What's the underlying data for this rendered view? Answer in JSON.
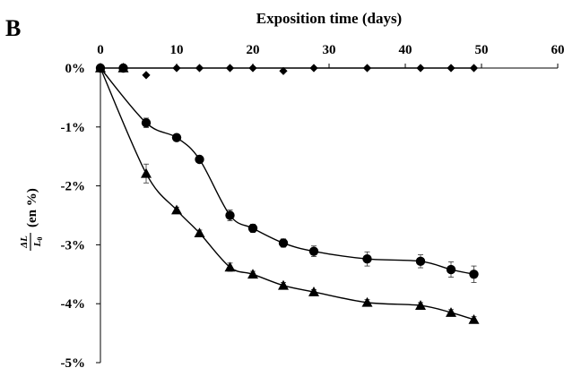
{
  "chart_data": {
    "type": "scatter",
    "panel_label": "B",
    "xlabel": "Exposition time (days)",
    "ylabel": {
      "numerator": "ΔL",
      "denominator_main": "L",
      "denominator_sub": "0",
      "suffix": "(en %)"
    },
    "xlim": [
      0,
      60
    ],
    "ylim": [
      -5,
      0
    ],
    "x_axis_position": "top",
    "x_ticks": [
      0,
      10,
      20,
      30,
      40,
      50,
      60
    ],
    "x_tick_labels": [
      "0",
      "10",
      "20",
      "30",
      "40",
      "50",
      "60"
    ],
    "y_ticks": [
      0,
      -1,
      -2,
      -3,
      -4,
      -5
    ],
    "y_tick_labels": [
      "0%",
      "-1%",
      "-2%",
      "-3%",
      "-4%",
      "-5%"
    ],
    "grid": false,
    "legend": "none",
    "series": [
      {
        "marker": "diamond",
        "color": "#000000",
        "trend_line": true,
        "x": [
          0,
          3,
          6,
          10,
          13,
          17,
          20,
          24,
          28,
          35,
          42,
          46,
          49
        ],
        "y": [
          0,
          0,
          -0.12,
          0,
          0,
          0,
          0,
          -0.05,
          0,
          0,
          0,
          0,
          0
        ],
        "err": [
          0,
          0,
          0,
          0,
          0,
          0,
          0,
          0,
          0,
          0,
          0,
          0,
          0
        ]
      },
      {
        "marker": "circle",
        "color": "#000000",
        "trend_line": true,
        "x": [
          0,
          3,
          6,
          10,
          13,
          17,
          20,
          24,
          28,
          35,
          42,
          46,
          49
        ],
        "y": [
          0,
          0,
          -0.93,
          -1.18,
          -1.55,
          -2.5,
          -2.72,
          -2.97,
          -3.11,
          -3.24,
          -3.28,
          -3.42,
          -3.5
        ],
        "err": [
          0,
          0,
          0.08,
          0.05,
          0.05,
          0.09,
          0.07,
          0.07,
          0.09,
          0.12,
          0.11,
          0.13,
          0.14
        ]
      },
      {
        "marker": "triangle",
        "color": "#000000",
        "trend_line": true,
        "x": [
          0,
          3,
          6,
          10,
          13,
          17,
          20,
          24,
          28,
          35,
          42,
          46,
          49
        ],
        "y": [
          0,
          0,
          -1.79,
          -2.41,
          -2.8,
          -3.38,
          -3.5,
          -3.69,
          -3.8,
          -3.98,
          -4.03,
          -4.15,
          -4.27
        ],
        "err": [
          0,
          0,
          0.16,
          0.05,
          0.05,
          0.07,
          0.05,
          0.05,
          0.04,
          0.05,
          0.05,
          0.05,
          0.05
        ]
      }
    ]
  }
}
